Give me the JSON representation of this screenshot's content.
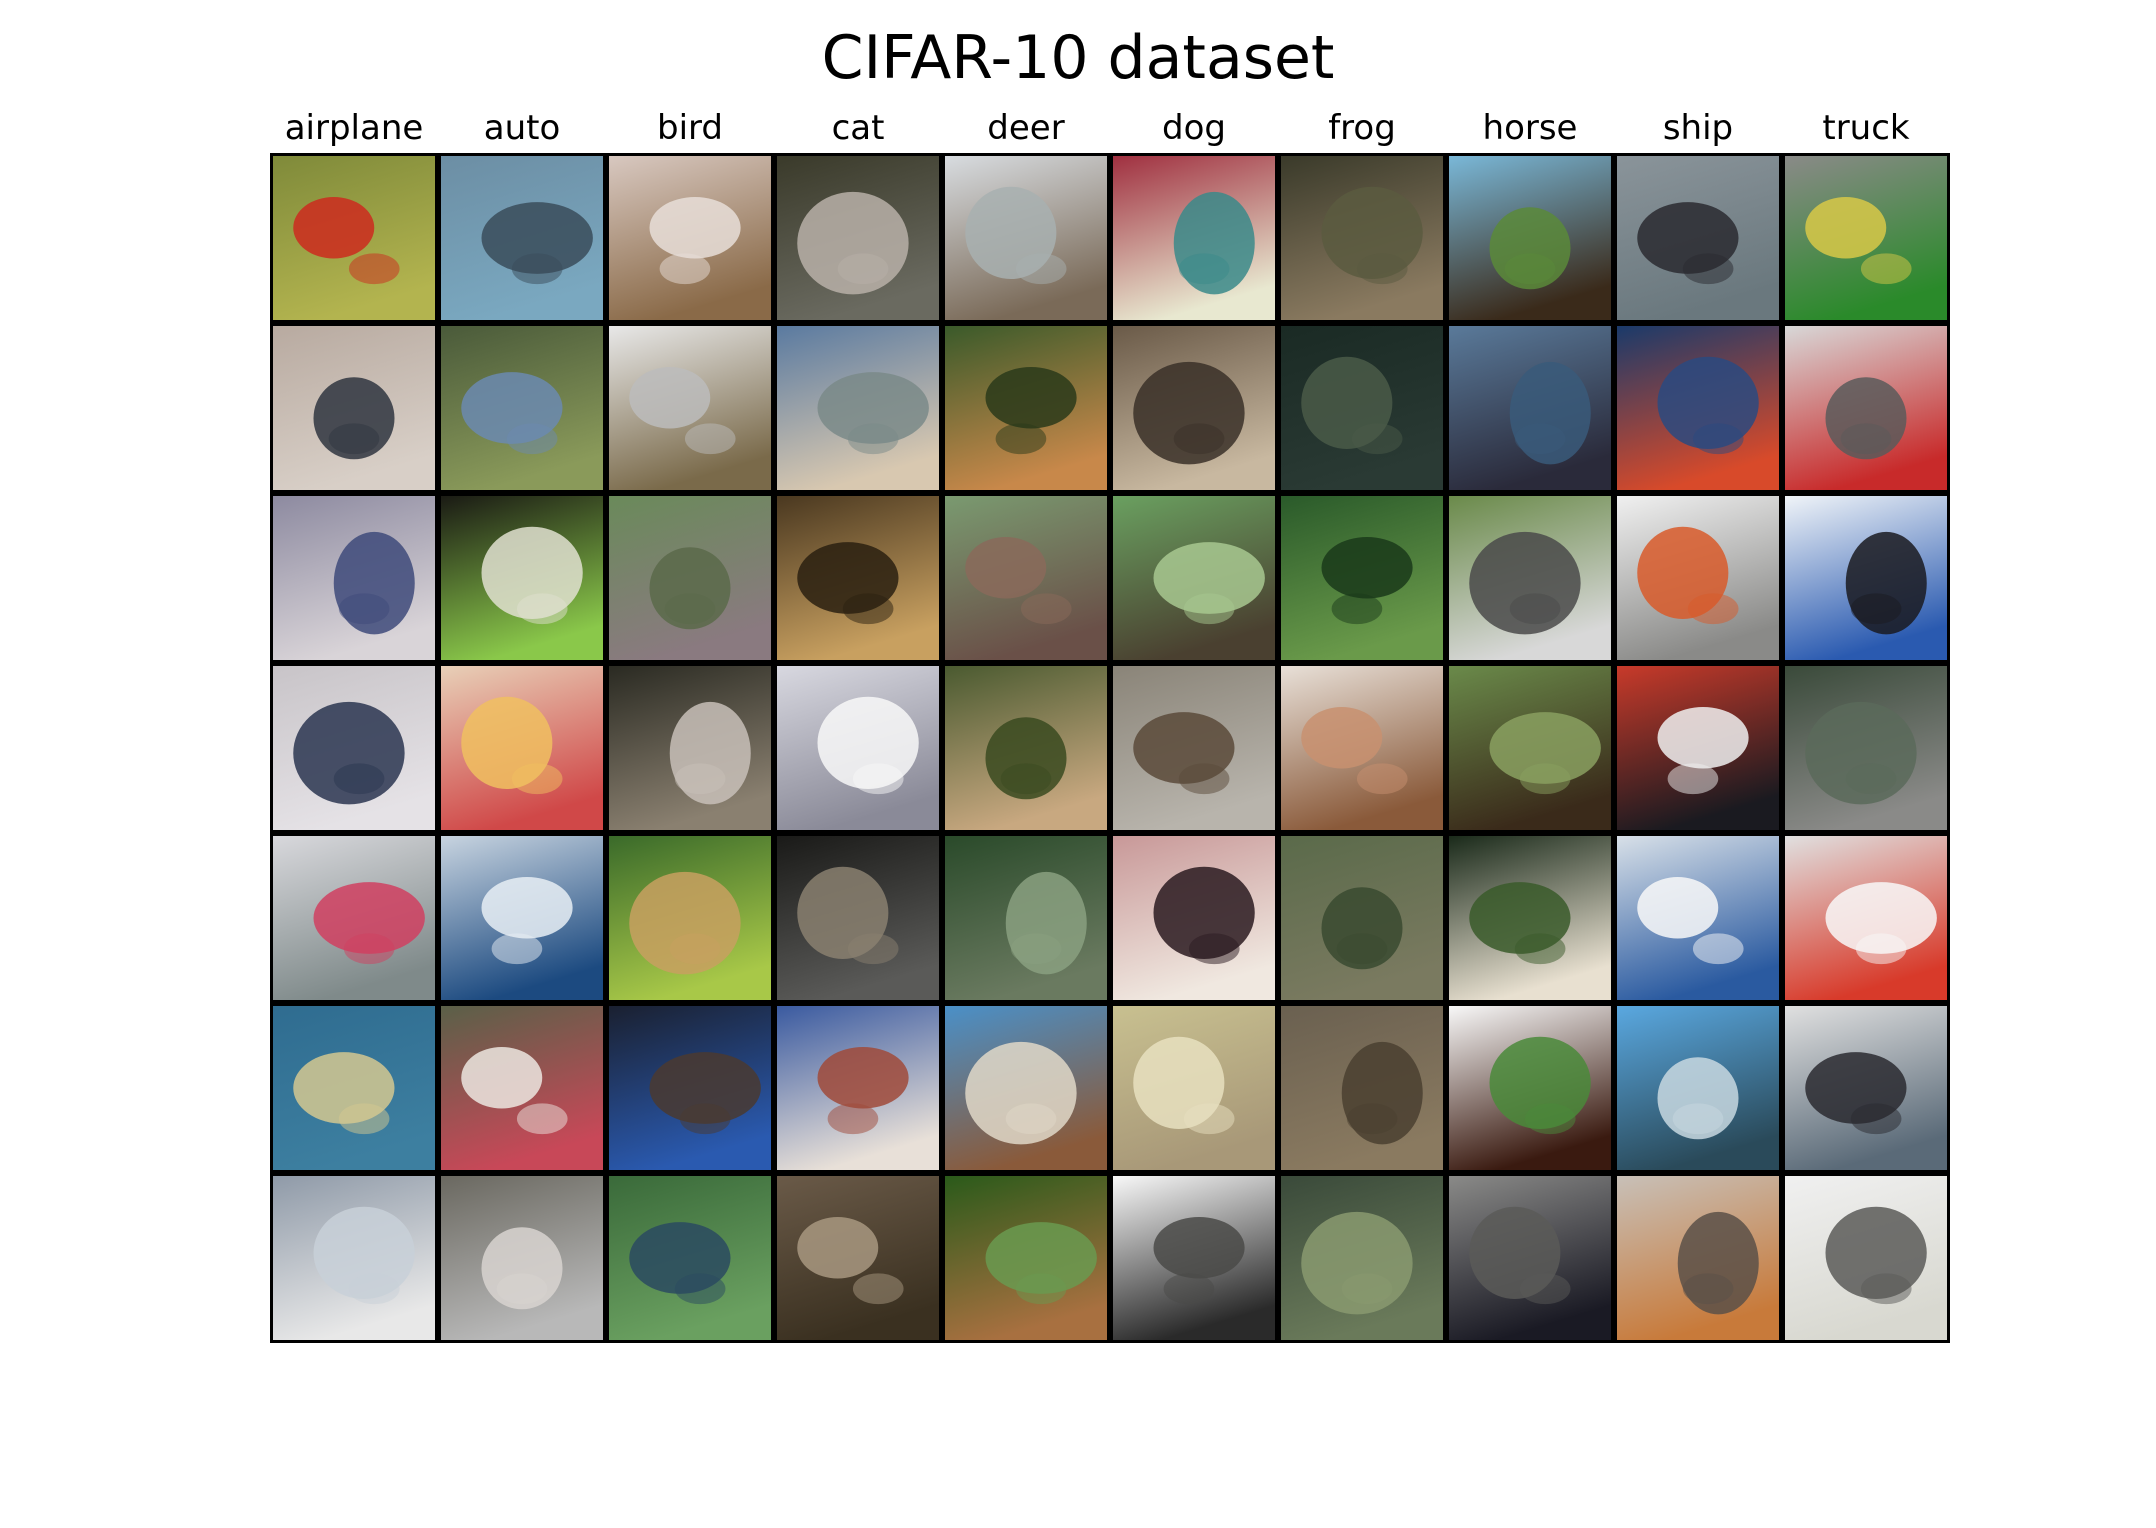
{
  "title": "CIFAR-10 dataset",
  "columns": [
    "airplane",
    "auto",
    "bird",
    "cat",
    "deer",
    "dog",
    "frog",
    "horse",
    "ship",
    "truck"
  ],
  "rows": 7,
  "palettes": {
    "airplane": [
      [
        "#7f8a3a",
        "#b3b44f",
        "#cc2a1e"
      ],
      [
        "#b8aaa0",
        "#d8cfc7",
        "#2f3540"
      ],
      [
        "#8d8aa0",
        "#d9d4d8",
        "#3e4a7a"
      ],
      [
        "#c8c4c8",
        "#e5e2e6",
        "#2a3550"
      ],
      [
        "#d8d8dc",
        "#7f8a8a",
        "#d04060"
      ],
      [
        "#2f6c90",
        "#3d7fa0",
        "#d4c890"
      ],
      [
        "#8f9aa8",
        "#e8e8e8",
        "#c8d0d8"
      ]
    ],
    "auto": [
      [
        "#6c8ea4",
        "#7aa8c0",
        "#3a4c5a"
      ],
      [
        "#4a5a3a",
        "#8a9a5a",
        "#6b8ab0"
      ],
      [
        "#1a1a14",
        "#8ac84a",
        "#e0e0d0"
      ],
      [
        "#e8d0b8",
        "#d04848",
        "#f0c060"
      ],
      [
        "#c8d4e0",
        "#1c4a80",
        "#e8eef4"
      ],
      [
        "#5a6048",
        "#c84858",
        "#ece6e0"
      ],
      [
        "#6a6860",
        "#b8b8b8",
        "#d8d4d0"
      ]
    ],
    "bird": [
      [
        "#d8c8c0",
        "#8a6a48",
        "#e8ded8"
      ],
      [
        "#e8e8e8",
        "#7a6a4a",
        "#bcbcbc"
      ],
      [
        "#6a8a5a",
        "#8a7a80",
        "#5a6a4a"
      ],
      [
        "#2a2a22",
        "#8a8070",
        "#c8c0b8"
      ],
      [
        "#3a6a2a",
        "#a8c848",
        "#c8a060"
      ],
      [
        "#1a2030",
        "#2a5ab0",
        "#4a3a30"
      ],
      [
        "#3a6a3a",
        "#6aa060",
        "#2a4a60"
      ]
    ],
    "cat": [
      [
        "#3a3a2a",
        "#6a6a60",
        "#b8b0a8"
      ],
      [
        "#5a7aa0",
        "#d8c8b0",
        "#7a8a88"
      ],
      [
        "#4a3820",
        "#c8a060",
        "#2a2010"
      ],
      [
        "#d8d8e0",
        "#8a8a98",
        "#f8f8f8"
      ],
      [
        "#1a1a18",
        "#5a5a58",
        "#8a8070"
      ],
      [
        "#3a5aa0",
        "#e8e0d8",
        "#a04a3a"
      ],
      [
        "#6a5a48",
        "#3a3020",
        "#a89880"
      ]
    ],
    "deer": [
      [
        "#d8dce0",
        "#7a6a58",
        "#a8b0b0"
      ],
      [
        "#3a5a2a",
        "#c8884a",
        "#2a3a1a"
      ],
      [
        "#7a9a70",
        "#6a5048",
        "#8a6a5a"
      ],
      [
        "#4a5a30",
        "#c8a880",
        "#3a4a20"
      ],
      [
        "#2a4a2a",
        "#6a7a60",
        "#8aa080"
      ],
      [
        "#4a90c8",
        "#8a5a3a",
        "#e0d8c8"
      ],
      [
        "#2a5a1a",
        "#a87040",
        "#6a9a50"
      ]
    ],
    "dog": [
      [
        "#a03040",
        "#e8e8d0",
        "#3a8a8a"
      ],
      [
        "#6a5a48",
        "#c8b8a0",
        "#3a3028"
      ],
      [
        "#6aa060",
        "#4a4030",
        "#a8c890"
      ],
      [
        "#8a8478",
        "#b8b4ac",
        "#5a4a3a"
      ],
      [
        "#c89898",
        "#f0e8e0",
        "#2a1a20"
      ],
      [
        "#c8c090",
        "#a89878",
        "#e8e0c0"
      ],
      [
        "#f8f8f8",
        "#2a2a2a",
        "#4a4a48"
      ]
    ],
    "frog": [
      [
        "#3a3a2a",
        "#8a7a60",
        "#5a5a40"
      ],
      [
        "#1a2a24",
        "#2a3a34",
        "#4a5a48"
      ],
      [
        "#2a5a2a",
        "#6a9a4a",
        "#1a3a1a"
      ],
      [
        "#e8e0d8",
        "#8a5a3a",
        "#c89070"
      ],
      [
        "#5a6a4a",
        "#7a7a60",
        "#3a4a30"
      ],
      [
        "#6a6050",
        "#8a7a60",
        "#4a4030"
      ],
      [
        "#3a4a3a",
        "#6a7a5a",
        "#8a9a70"
      ]
    ],
    "horse": [
      [
        "#7ab8d8",
        "#3a2a1a",
        "#5a8a3a"
      ],
      [
        "#5a7a9a",
        "#2a2a3a",
        "#3a5a7a"
      ],
      [
        "#6a8a4a",
        "#d8d8d8",
        "#4a4a4a"
      ],
      [
        "#6a8a4a",
        "#3a2a1a",
        "#8aa060"
      ],
      [
        "#1a2a1a",
        "#e8e0d0",
        "#3a5a2a"
      ],
      [
        "#f8f8f8",
        "#3a1a10",
        "#4a8a3a"
      ],
      [
        "#8a8a88",
        "#1a1a24",
        "#5a5a58"
      ]
    ],
    "ship": [
      [
        "#8a949a",
        "#6a787e",
        "#2a2a30"
      ],
      [
        "#1a3a6a",
        "#d84a2a",
        "#2a4a80"
      ],
      [
        "#f0f0f0",
        "#8a8a88",
        "#d85a2a"
      ],
      [
        "#c83a2a",
        "#1a1a20",
        "#f0f0f0"
      ],
      [
        "#d8e0e8",
        "#2a5aa0",
        "#f8f8f8"
      ],
      [
        "#5aa8e0",
        "#2a4a5a",
        "#c8d8e0"
      ],
      [
        "#c8c0b8",
        "#c87a3a",
        "#5a5048"
      ]
    ],
    "truck": [
      [
        "#8a8a88",
        "#2a8a2a",
        "#d8c848"
      ],
      [
        "#d8d8d8",
        "#c82a2a",
        "#5a5a5a"
      ],
      [
        "#f0f4f8",
        "#2a5ab0",
        "#1a1a20"
      ],
      [
        "#3a4a3a",
        "#8a8a88",
        "#5a6a5a"
      ],
      [
        "#e0e0e0",
        "#d83a2a",
        "#f8f8f8"
      ],
      [
        "#e0e0e0",
        "#5a6a78",
        "#2a2a30"
      ],
      [
        "#f0f0f0",
        "#d8d8d0",
        "#5a5a58"
      ]
    ]
  }
}
